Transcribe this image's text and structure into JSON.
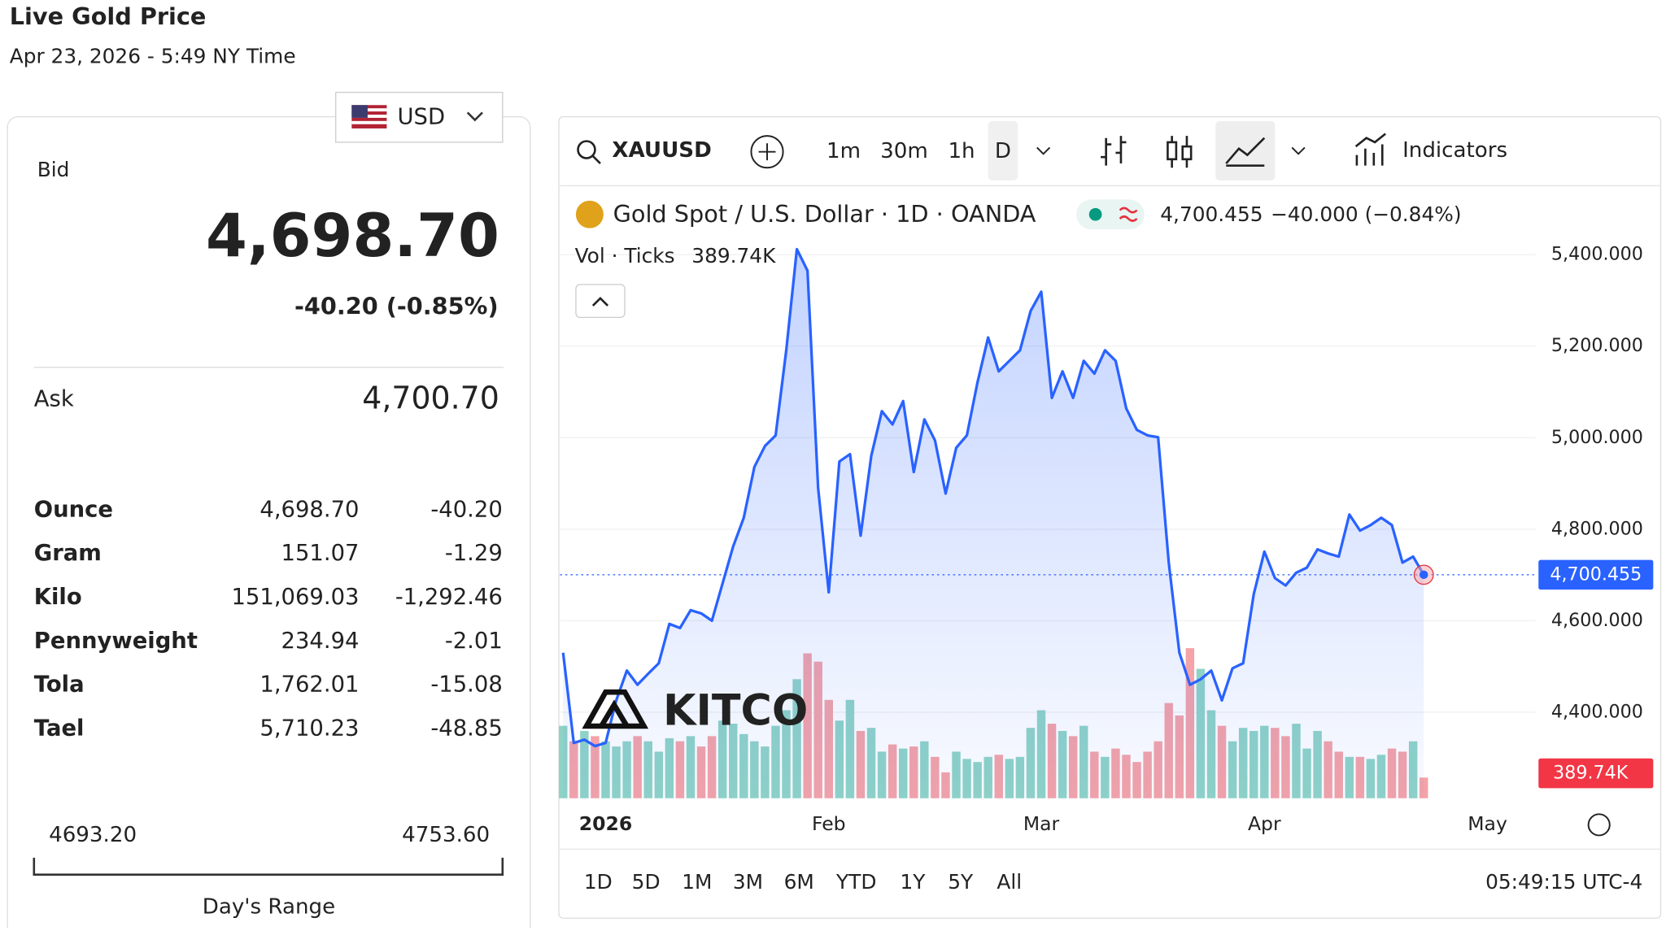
{
  "header": {
    "title": "Live Gold Price",
    "timestamp": "Apr 23, 2026 - 5:49 NY Time"
  },
  "currency": "USD",
  "quote": {
    "bid_label": "Bid",
    "bid": "4,698.70",
    "bid_change": "-40.20 (-0.85%)",
    "ask_label": "Ask",
    "ask": "4,700.70"
  },
  "table": {
    "rows": [
      [
        "Ounce",
        "4,698.70",
        "-40.20"
      ],
      [
        "Gram",
        "151.07",
        "-1.29"
      ],
      [
        "Kilo",
        "151,069.03",
        "-1,292.46"
      ],
      [
        "Pennyweight",
        "234.94",
        "-2.01"
      ],
      [
        "Tola",
        "1,762.01",
        "-15.08"
      ],
      [
        "Tael",
        "5,710.23",
        "-48.85"
      ]
    ]
  },
  "day_range": {
    "low": "4693.20",
    "high": "4753.60",
    "label": "Day's Range"
  },
  "toolbar": {
    "symbol": "XAUUSD",
    "intervals": [
      "1m",
      "30m",
      "1h",
      "D"
    ],
    "indicators": "Indicators"
  },
  "legend": {
    "instrument": "Gold Spot / U.S. Dollar · 1D · OANDA",
    "price": "4,700.455",
    "change": "−40.000 (−0.84%)",
    "volume_name": "Vol · Ticks",
    "volume": "389.74K"
  },
  "watermark": "KITCO",
  "ranges": [
    "1D",
    "5D",
    "1M",
    "3M",
    "6M",
    "YTD",
    "1Y",
    "5Y",
    "All"
  ],
  "clock": "05:49:15 UTC-4",
  "chart_data": {
    "type": "area",
    "categories": [
      null,
      null,
      null,
      null,
      "2026",
      null,
      null,
      null,
      null,
      null,
      null,
      null,
      null,
      null,
      null,
      null,
      null,
      null,
      null,
      null,
      null,
      null,
      null,
      null,
      null,
      "Feb",
      null,
      null,
      null,
      null,
      null,
      null,
      null,
      null,
      null,
      null,
      null,
      null,
      null,
      null,
      null,
      null,
      null,
      null,
      null,
      "Mar",
      null,
      null,
      null,
      null,
      null,
      null,
      null,
      null,
      null,
      null,
      null,
      null,
      null,
      null,
      null,
      null,
      null,
      null,
      null,
      null,
      "Apr",
      null,
      null,
      null,
      null,
      null,
      null,
      null,
      null,
      null,
      null,
      null,
      null,
      null,
      null,
      null,
      null,
      null,
      null,
      null,
      null,
      "May"
    ],
    "series": [
      {
        "name": "XAUUSD",
        "color": "#2962ff",
        "values": [
          4530,
          4333,
          4340,
          4326,
          4333,
          4426,
          4491,
          4460,
          4484,
          4507,
          4593,
          4584,
          4623,
          4616,
          4600,
          4681,
          4762,
          4825,
          4936,
          4982,
          5005,
          5191,
          5412,
          5365,
          4890,
          4662,
          4948,
          4964,
          4786,
          4960,
          5058,
          5029,
          5080,
          4925,
          5040,
          4994,
          4878,
          4978,
          5005,
          5121,
          5219,
          5145,
          5168,
          5191,
          5277,
          5319,
          5087,
          5145,
          5087,
          5168,
          5140,
          5191,
          5168,
          5064,
          5017,
          5005,
          5001,
          4727,
          4530,
          4460,
          4472,
          4491,
          4426,
          4496,
          4507,
          4658,
          4751,
          4693,
          4677,
          4705,
          4716,
          4756,
          4747,
          4740,
          4832,
          4797,
          4809,
          4825,
          4809,
          4727,
          4740,
          4700.455,
          null,
          null,
          null,
          null,
          null,
          null
        ]
      }
    ],
    "volume": {
      "values": [
        1365,
        1073,
        1268,
        1170,
        1073,
        975,
        1073,
        1170,
        1073,
        878,
        1131,
        1073,
        1170,
        975,
        1170,
        1463,
        1404,
        1209,
        1073,
        975,
        1365,
        1658,
        2243,
        2730,
        2574,
        1853,
        1463,
        1853,
        1268,
        1326,
        878,
        1014,
        936,
        975,
        1073,
        780,
        488,
        878,
        741,
        683,
        780,
        819,
        741,
        780,
        1326,
        1658,
        1404,
        1268,
        1170,
        1365,
        878,
        780,
        936,
        819,
        683,
        878,
        1073,
        1794,
        1560,
        2828,
        2438,
        1658,
        1365,
        1073,
        1326,
        1268,
        1365,
        1326,
        1170,
        1404,
        936,
        1268,
        1073,
        878,
        780,
        780,
        741,
        819,
        936,
        878,
        1073,
        389.74
      ],
      "up_color": "#8fd3c7",
      "down_color": "#f4a3a8",
      "vlim": [
        0,
        4000
      ]
    },
    "ylim": [
      4212,
      5539
    ],
    "yticks": [
      {
        "value": 4400,
        "label": "4,400.000"
      },
      {
        "value": 4600,
        "label": "4,600.000"
      },
      {
        "value": 4800,
        "label": "4,800.000"
      },
      {
        "value": 5000,
        "label": "5,000.000"
      },
      {
        "value": 5200,
        "label": "5,200.000"
      },
      {
        "value": 5400,
        "label": "5,400.000"
      }
    ],
    "grid": true
  }
}
